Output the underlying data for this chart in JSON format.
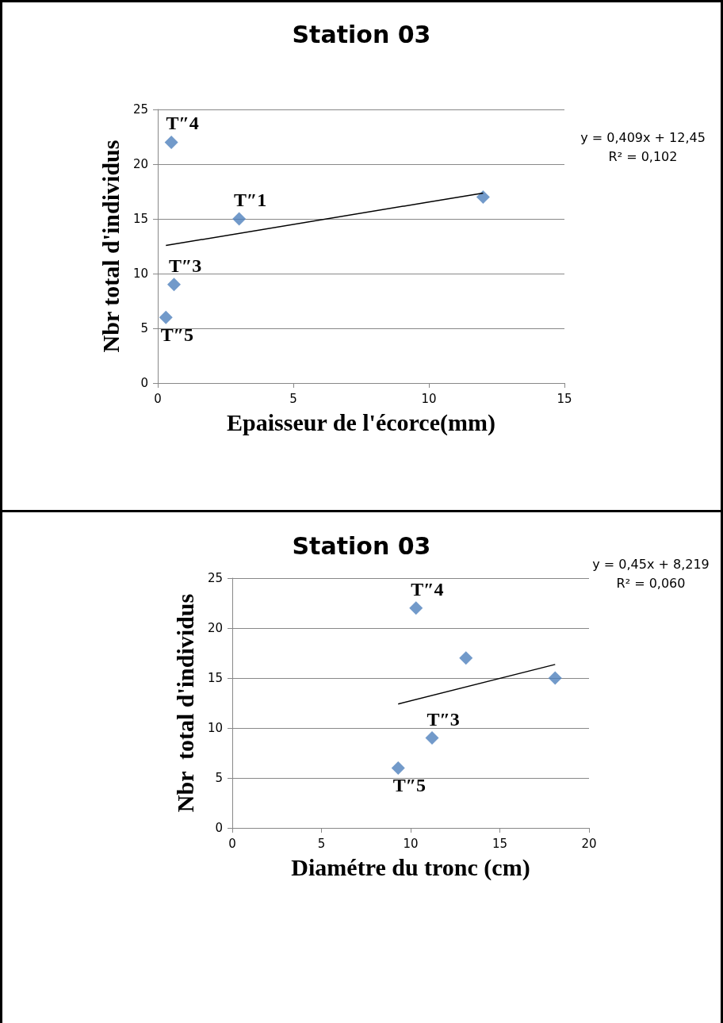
{
  "chart_data": [
    {
      "type": "scatter",
      "title": "Station 03",
      "xlabel": "Epaisseur de l'écorce(mm)",
      "ylabel": "Nbr total d'individus",
      "xlim": [
        0,
        15
      ],
      "xticks": [
        0,
        5,
        10,
        15
      ],
      "ylim": [
        0,
        25
      ],
      "yticks": [
        0,
        5,
        10,
        15,
        20,
        25
      ],
      "grid": "y",
      "marker": "diamond",
      "series": [
        {
          "color": "#4f81bd",
          "x": [
            0.5,
            3.0,
            12.0,
            0.6,
            0.3
          ],
          "values": [
            22,
            15,
            17,
            9,
            6
          ]
        },
        {
          "type": "line",
          "color": "#000000",
          "marker": "none",
          "x": [
            0.3,
            12.0
          ],
          "values": [
            12.57,
            17.36
          ]
        }
      ],
      "annotations": [
        {
          "text": "T″4",
          "x": 0.5,
          "y": 22
        },
        {
          "text": "T″1",
          "x": 3.0,
          "y": 15
        },
        {
          "text": "T″3",
          "x": 0.6,
          "y": 9
        },
        {
          "text": "T″5",
          "x": 0.3,
          "y": 6
        },
        "y = 0,409x + 12,45",
        "R² = 0,102"
      ]
    },
    {
      "type": "scatter",
      "title": "Station 03",
      "xlabel": "Diamétre du tronc (cm)",
      "ylabel": "Nbr  total d'individus",
      "xlim": [
        0,
        20
      ],
      "xticks": [
        0,
        5,
        10,
        15,
        20
      ],
      "ylim": [
        0,
        25
      ],
      "yticks": [
        0,
        5,
        10,
        15,
        20,
        25
      ],
      "grid": "y",
      "marker": "diamond",
      "series": [
        {
          "color": "#4f81bd",
          "x": [
            10.3,
            13.1,
            18.1,
            11.2,
            9.3
          ],
          "values": [
            22,
            17,
            15,
            9,
            6
          ]
        },
        {
          "type": "line",
          "color": "#000000",
          "marker": "none",
          "x": [
            9.3,
            18.1
          ],
          "values": [
            12.4,
            16.36
          ]
        }
      ],
      "annotations": [
        {
          "text": "T″4",
          "x": 10.3,
          "y": 22
        },
        {
          "text": "T″3",
          "x": 11.2,
          "y": 9
        },
        {
          "text": "T″5",
          "x": 9.3,
          "y": 6
        },
        "y = 0,45x + 8,219",
        "R² = 0,060"
      ]
    }
  ]
}
